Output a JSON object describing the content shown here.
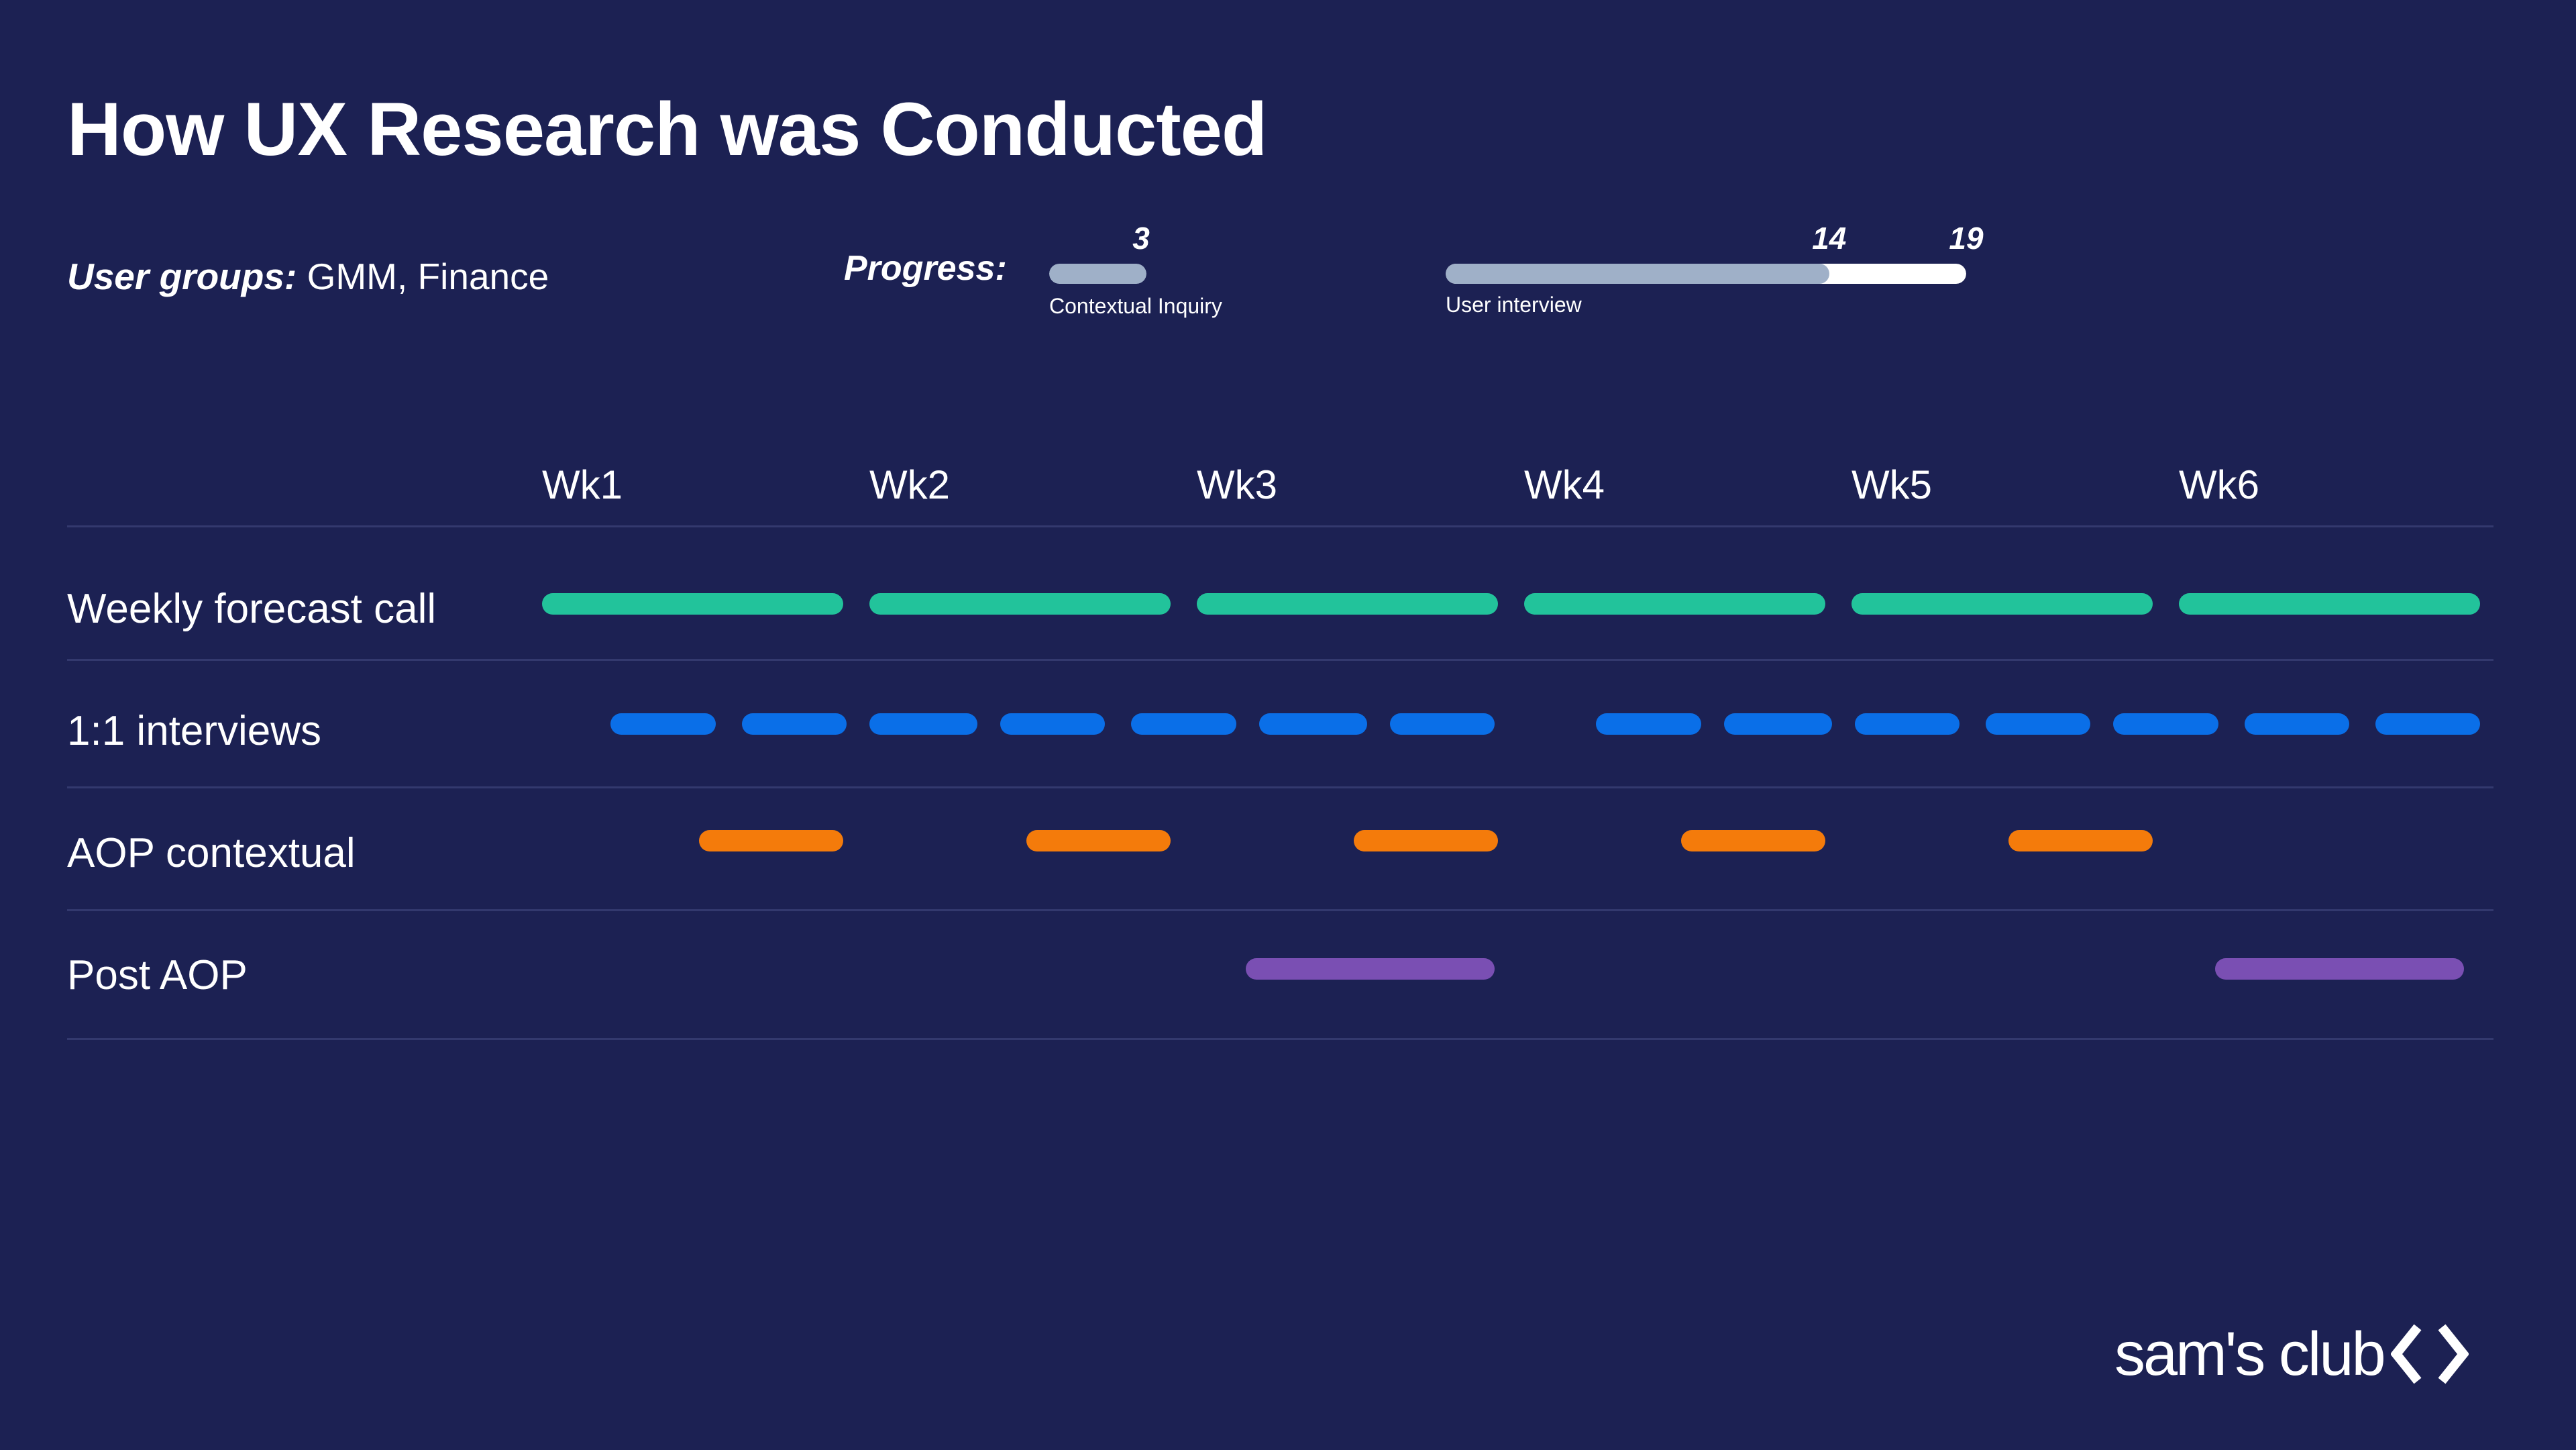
{
  "title": "How UX Research was Conducted",
  "user_groups": {
    "label": "User groups:",
    "value": "GMM, Finance"
  },
  "progress": {
    "label": "Progress:",
    "contextual_inquiry": {
      "caption": "Contextual Inquiry",
      "done": 3,
      "done_label": "3"
    },
    "user_interview": {
      "caption": "User interview",
      "done": 14,
      "total": 19,
      "done_label": "14",
      "total_label": "19"
    }
  },
  "colors": {
    "background": "#1c2153",
    "progress_done": "#9fb0c8",
    "progress_track": "#ffffff",
    "weekly_forecast": "#22c39b",
    "interviews": "#0a6fe8",
    "aop_contextual": "#f47b0b",
    "post_aop": "#7a4fb3"
  },
  "weeks": [
    "Wk1",
    "Wk2",
    "Wk3",
    "Wk4",
    "Wk5",
    "Wk6"
  ],
  "rows": [
    {
      "label": "Weekly forecast call",
      "color": "weekly_forecast",
      "segments": [
        [
          1.0,
          1.92
        ],
        [
          2.0,
          2.92
        ],
        [
          3.0,
          3.92
        ],
        [
          4.0,
          4.92
        ],
        [
          5.0,
          5.92
        ],
        [
          6.0,
          6.92
        ]
      ]
    },
    {
      "label": "1:1 interviews",
      "color": "interviews",
      "segments": [
        [
          1.21,
          1.53
        ],
        [
          1.61,
          1.93
        ],
        [
          2.0,
          2.33
        ],
        [
          2.4,
          2.72
        ],
        [
          2.8,
          3.12
        ],
        [
          3.19,
          3.52
        ],
        [
          3.59,
          3.91
        ],
        [
          4.22,
          4.54
        ],
        [
          4.61,
          4.94
        ],
        [
          5.01,
          5.33
        ],
        [
          5.41,
          5.73
        ],
        [
          5.8,
          6.12
        ],
        [
          6.2,
          6.52
        ],
        [
          6.6,
          6.92
        ]
      ]
    },
    {
      "label": "AOP contextual",
      "color": "aop_contextual",
      "segments": [
        [
          1.48,
          1.92
        ],
        [
          2.48,
          2.92
        ],
        [
          3.48,
          3.92
        ],
        [
          4.48,
          4.92
        ],
        [
          5.48,
          5.92
        ]
      ]
    },
    {
      "label": "Post AOP",
      "color": "post_aop",
      "segments": [
        [
          3.15,
          3.91
        ],
        [
          6.11,
          6.87
        ]
      ]
    }
  ],
  "logo": {
    "text": "sam's club"
  }
}
